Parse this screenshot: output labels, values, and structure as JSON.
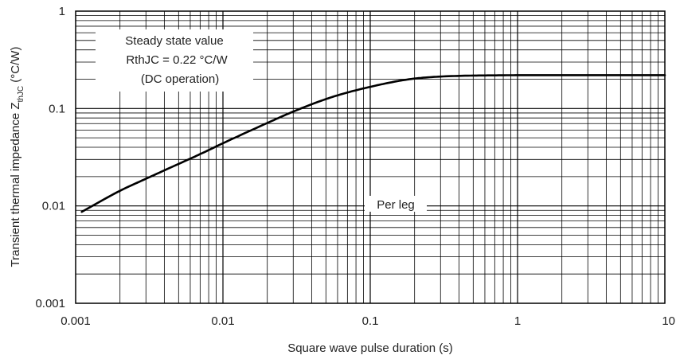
{
  "chart_data": {
    "type": "line",
    "xscale": "log",
    "yscale": "log",
    "xlim": [
      0.001,
      10
    ],
    "ylim": [
      0.001,
      1
    ],
    "grid": true,
    "xlabel": "Square wave pulse duration (s)",
    "ylabel": {
      "main": "Transient thermal impedance Z",
      "subscript": "thJC",
      "unit": " (°C/W)"
    },
    "x_tick_labels": [
      "0.001",
      "0.01",
      "0.1",
      "1",
      "10"
    ],
    "y_tick_labels": [
      "0.001",
      "0.01",
      "0.1",
      "1"
    ],
    "annotations": {
      "steady_state": [
        "Steady state value",
        "RthJC = 0.22 °C/W",
        "(DC operation)"
      ],
      "per_leg": "Per leg"
    },
    "series": [
      {
        "x": [
          0.0011,
          0.002,
          0.003,
          0.005,
          0.007,
          0.01,
          0.02,
          0.03,
          0.05,
          0.07,
          0.1,
          0.15,
          0.2,
          0.3,
          0.5,
          0.7,
          1,
          2,
          5,
          10
        ],
        "y": [
          0.0087,
          0.0143,
          0.019,
          0.027,
          0.034,
          0.044,
          0.071,
          0.093,
          0.125,
          0.146,
          0.167,
          0.19,
          0.203,
          0.213,
          0.218,
          0.219,
          0.22,
          0.22,
          0.22,
          0.22
        ]
      }
    ]
  }
}
